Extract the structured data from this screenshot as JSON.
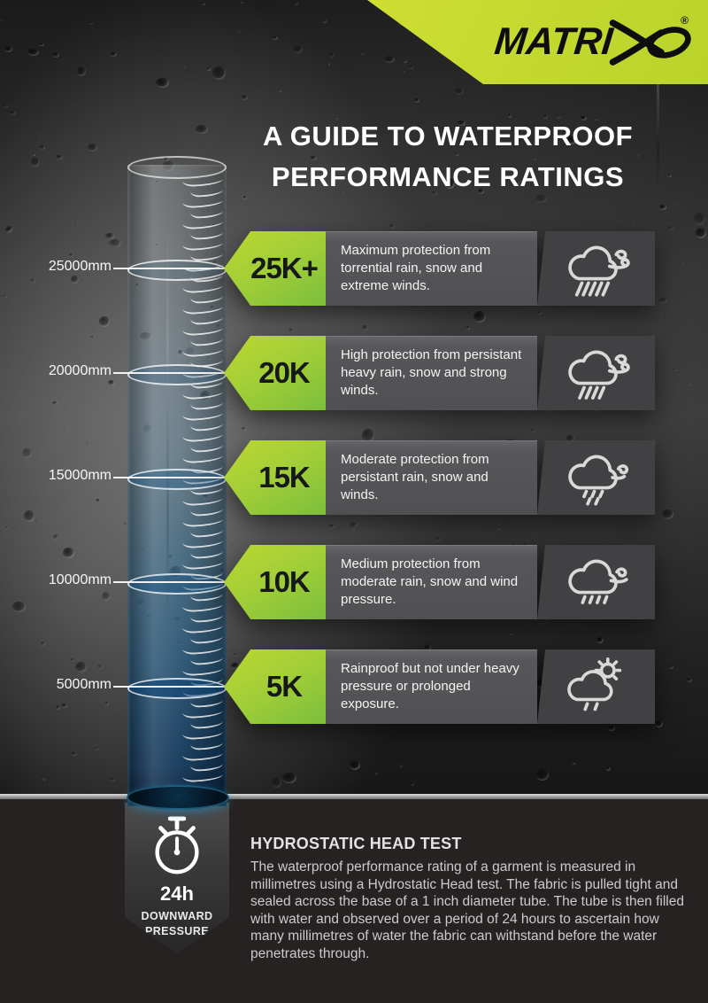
{
  "brand": {
    "name": "MATRIX",
    "display_prefix": "MATRI",
    "registered": "®"
  },
  "title": {
    "line1": "A GUIDE TO WATERPROOF",
    "line2": "PERFORMANCE RATINGS"
  },
  "gauge": {
    "scale_labels": [
      "25000mm",
      "20000mm",
      "15000mm",
      "10000mm",
      "5000mm"
    ]
  },
  "ratings": [
    {
      "badge": "25K+",
      "description": "Maximum protection from torrential rain, snow and extreme winds.",
      "icon": "cloud-heavy-rain-strong-wind-icon"
    },
    {
      "badge": "20K",
      "description": "High protection from persistant heavy rain, snow and strong winds.",
      "icon": "cloud-rain-strong-wind-icon"
    },
    {
      "badge": "15K",
      "description": "Moderate protection from persistant rain, snow and winds.",
      "icon": "cloud-rain-wind-icon"
    },
    {
      "badge": "10K",
      "description": "Medium protection from moderate rain, snow and wind pressure.",
      "icon": "cloud-drizzle-wind-icon"
    },
    {
      "badge": "5K",
      "description": "Rainproof but not under heavy pressure or prolonged exposure.",
      "icon": "sun-cloud-light-rain-icon"
    }
  ],
  "footer": {
    "timer_duration": "24h",
    "timer_label": "DOWNWARD PRESSURE",
    "heading": "HYDROSTATIC HEAD TEST",
    "body": "The waterproof performance rating of a garment is measured in millimetres using a Hydrostatic Head test. The fabric is pulled tight and sealed across the base of a 1 inch diameter tube. The tube is then filled with water and observed over a period of 24 hours to ascertain how many millimetres of water the fabric can withstand before the water penetrates through."
  },
  "colors": {
    "accent_green": "#bdd631",
    "badge_green_dark": "#7cbe3c",
    "panel_gray": "#57575a",
    "panel_icon_gray": "#414144",
    "water_blue": "#1b6c9c"
  }
}
